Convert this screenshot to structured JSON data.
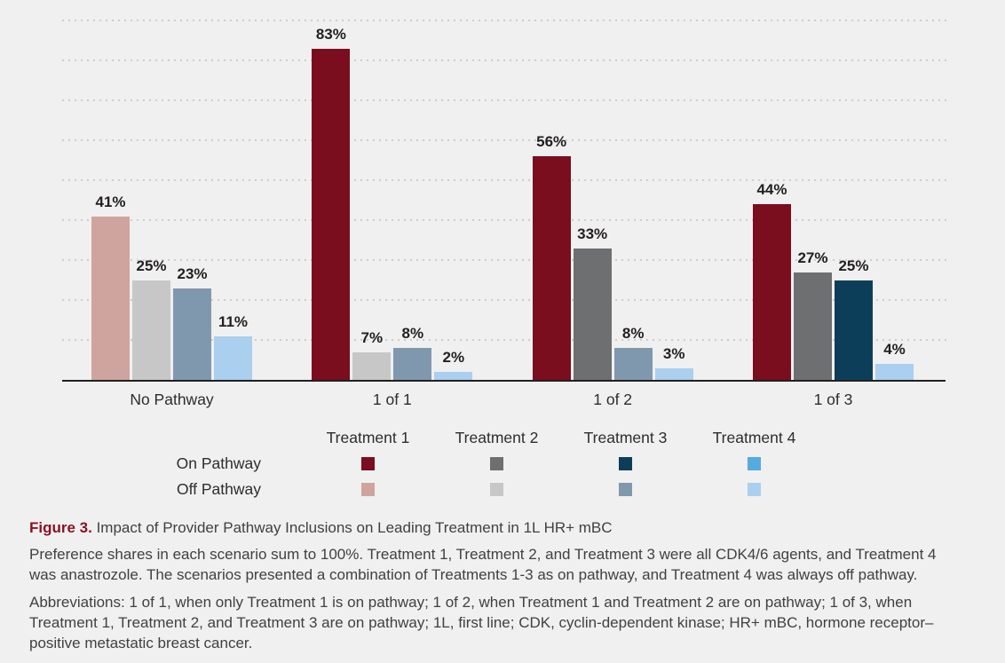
{
  "figure": {
    "label": "Figure 3.",
    "title": " Impact of Provider Pathway Inclusions on Leading Treatment in 1L HR+ mBC",
    "note1_lines": [
      "Preference shares in each scenario sum to 100%. Treatment 1, Treatment 2, and Treatment 3 were all CDK4/6 agents, and Treatment 4",
      "was anastrozole. The scenarios presented a combination of Treatments 1-3 as on pathway, and Treatment 4 was always off pathway."
    ],
    "note2_lines": [
      "Abbreviations: 1 of 1, when only Treatment 1 is on pathway; 1 of 2, when Treatment 1 and Treatment 2 are on pathway; 1 of 3, when",
      "Treatment 1, Treatment 2, and Treatment 3 are on pathway; 1L, first line; CDK, cyclin-dependent kinase; HR+ mBC, hormone receptor–",
      "positive metastatic breast cancer."
    ]
  },
  "chart_data": {
    "type": "bar",
    "title": "Impact of Provider Pathway Inclusions on Leading Treatment in 1L HR+ mBC",
    "categories": [
      "No Pathway",
      "1 of 1",
      "1 of 2",
      "1 of 3"
    ],
    "series": [
      {
        "name": "Treatment 1",
        "values": [
          41,
          83,
          56,
          44
        ],
        "pathway": [
          "off",
          "on",
          "on",
          "on"
        ],
        "colors": {
          "on": "#7a0e1e",
          "off": "#d0a49e"
        }
      },
      {
        "name": "Treatment 2",
        "values": [
          25,
          7,
          33,
          27
        ],
        "pathway": [
          "off",
          "off",
          "on",
          "on"
        ],
        "colors": {
          "on": "#6e6f71",
          "off": "#c7c7c8"
        }
      },
      {
        "name": "Treatment 3",
        "values": [
          23,
          8,
          8,
          25
        ],
        "pathway": [
          "off",
          "off",
          "off",
          "on"
        ],
        "colors": {
          "on": "#0d3e59",
          "off": "#8098ae"
        }
      },
      {
        "name": "Treatment 4",
        "values": [
          11,
          2,
          3,
          4
        ],
        "pathway": [
          "off",
          "off",
          "off",
          "off"
        ],
        "colors": {
          "on": "#57aadf",
          "off": "#abcfee"
        }
      }
    ],
    "value_suffix": "%",
    "ylim": [
      0,
      90
    ],
    "gridline_interval": 10,
    "grid": "dotted horizontal, no y-axis tick labels",
    "legend": {
      "position": "below chart",
      "row_labels": [
        "On Pathway",
        "Off Pathway"
      ],
      "column_labels": [
        "Treatment 1",
        "Treatment 2",
        "Treatment 3",
        "Treatment 4"
      ]
    }
  },
  "colors": {
    "background": "#f0f0f0",
    "axis_line": "#231f20",
    "gridline": "#cdcdcd",
    "bar_value_text": "#231f20",
    "body_text": "#414042",
    "figure_label_accent": "#8a1222"
  }
}
